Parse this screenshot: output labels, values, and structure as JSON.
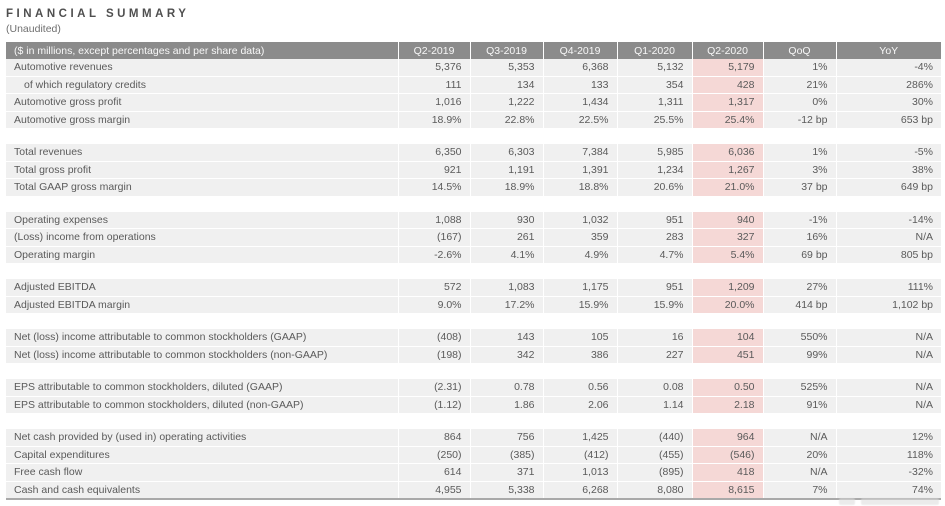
{
  "title": "FINANCIAL SUMMARY",
  "subtitle": "(Unaudited)",
  "colors": {
    "header_bg": "#8b8b8b",
    "header_text": "#f7f7f7",
    "row_bg": "#f0f0f0",
    "row_text": "#5a5a5a",
    "highlight_bg": "#f5d8d6",
    "table_bottom_rule": "#a9a9a9"
  },
  "table": {
    "header_label": "($ in millions, except percentages and per share data)",
    "columns": [
      "Q2-2019",
      "Q3-2019",
      "Q4-2019",
      "Q1-2020",
      "Q2-2020",
      "QoQ",
      "YoY"
    ],
    "highlight_column": "Q2-2020",
    "highlight_column_index": 4,
    "groups": [
      {
        "rows": [
          {
            "label": "Automotive revenues",
            "indent": false,
            "values": [
              "5,376",
              "5,353",
              "6,368",
              "5,132",
              "5,179",
              "1%",
              "-4%"
            ]
          },
          {
            "label": "of which regulatory credits",
            "indent": true,
            "values": [
              "111",
              "134",
              "133",
              "354",
              "428",
              "21%",
              "286%"
            ]
          },
          {
            "label": "Automotive gross profit",
            "indent": false,
            "values": [
              "1,016",
              "1,222",
              "1,434",
              "1,311",
              "1,317",
              "0%",
              "30%"
            ]
          },
          {
            "label": "Automotive gross margin",
            "indent": false,
            "values": [
              "18.9%",
              "22.8%",
              "22.5%",
              "25.5%",
              "25.4%",
              "-12 bp",
              "653 bp"
            ]
          }
        ]
      },
      {
        "rows": [
          {
            "label": "Total revenues",
            "indent": false,
            "values": [
              "6,350",
              "6,303",
              "7,384",
              "5,985",
              "6,036",
              "1%",
              "-5%"
            ]
          },
          {
            "label": "Total gross profit",
            "indent": false,
            "values": [
              "921",
              "1,191",
              "1,391",
              "1,234",
              "1,267",
              "3%",
              "38%"
            ]
          },
          {
            "label": "Total GAAP gross margin",
            "indent": false,
            "values": [
              "14.5%",
              "18.9%",
              "18.8%",
              "20.6%",
              "21.0%",
              "37 bp",
              "649 bp"
            ]
          }
        ]
      },
      {
        "rows": [
          {
            "label": "Operating expenses",
            "indent": false,
            "values": [
              "1,088",
              "930",
              "1,032",
              "951",
              "940",
              "-1%",
              "-14%"
            ]
          },
          {
            "label": "(Loss) income from operations",
            "indent": false,
            "values": [
              "(167)",
              "261",
              "359",
              "283",
              "327",
              "16%",
              "N/A"
            ]
          },
          {
            "label": "Operating margin",
            "indent": false,
            "values": [
              "-2.6%",
              "4.1%",
              "4.9%",
              "4.7%",
              "5.4%",
              "69 bp",
              "805 bp"
            ]
          }
        ]
      },
      {
        "rows": [
          {
            "label": "Adjusted EBITDA",
            "indent": false,
            "values": [
              "572",
              "1,083",
              "1,175",
              "951",
              "1,209",
              "27%",
              "111%"
            ]
          },
          {
            "label": "Adjusted EBITDA margin",
            "indent": false,
            "values": [
              "9.0%",
              "17.2%",
              "15.9%",
              "15.9%",
              "20.0%",
              "414 bp",
              "1,102 bp"
            ]
          }
        ]
      },
      {
        "rows": [
          {
            "label": "Net (loss) income attributable to common stockholders (GAAP)",
            "indent": false,
            "values": [
              "(408)",
              "143",
              "105",
              "16",
              "104",
              "550%",
              "N/A"
            ]
          },
          {
            "label": "Net (loss) income attributable to common stockholders (non-GAAP)",
            "indent": false,
            "values": [
              "(198)",
              "342",
              "386",
              "227",
              "451",
              "99%",
              "N/A"
            ]
          }
        ]
      },
      {
        "rows": [
          {
            "label": "EPS attributable to common stockholders, diluted (GAAP)",
            "indent": false,
            "values": [
              "(2.31)",
              "0.78",
              "0.56",
              "0.08",
              "0.50",
              "525%",
              "N/A"
            ]
          },
          {
            "label": "EPS attributable to common stockholders, diluted (non-GAAP)",
            "indent": false,
            "values": [
              "(1.12)",
              "1.86",
              "2.06",
              "1.14",
              "2.18",
              "91%",
              "N/A"
            ]
          }
        ]
      },
      {
        "rows": [
          {
            "label": "Net cash provided by (used in) operating activities",
            "indent": false,
            "values": [
              "864",
              "756",
              "1,425",
              "(440)",
              "964",
              "N/A",
              "12%"
            ]
          },
          {
            "label": "Capital expenditures",
            "indent": false,
            "values": [
              "(250)",
              "(385)",
              "(412)",
              "(455)",
              "(546)",
              "20%",
              "118%"
            ]
          },
          {
            "label": "Free cash flow",
            "indent": false,
            "values": [
              "614",
              "371",
              "1,013",
              "(895)",
              "418",
              "N/A",
              "-32%"
            ]
          },
          {
            "label": "Cash and cash equivalents",
            "indent": false,
            "values": [
              "4,955",
              "5,338",
              "6,268",
              "8,080",
              "8,615",
              "7%",
              "74%"
            ]
          }
        ]
      }
    ]
  }
}
